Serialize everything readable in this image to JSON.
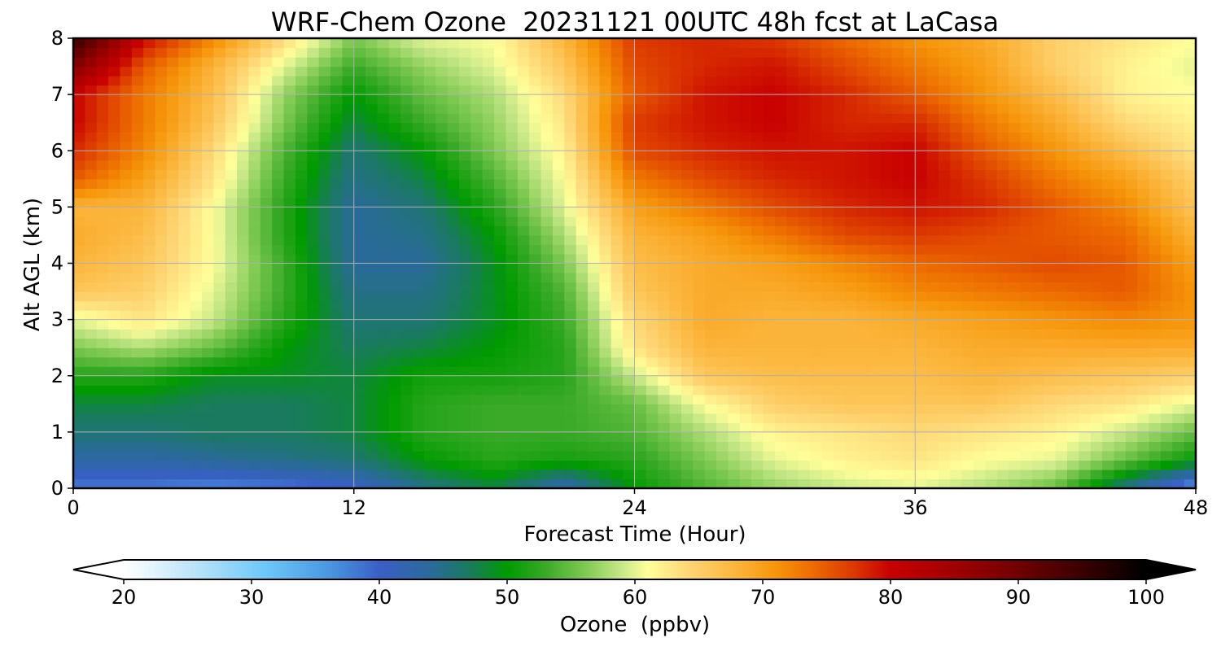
{
  "chart_data": {
    "type": "heatmap",
    "title": "WRF-Chem Ozone  20231121 00UTC 48h fcst at LaCasa",
    "xlabel": "Forecast Time (Hour)",
    "ylabel": "Alt AGL (km)",
    "xlim": [
      0,
      48
    ],
    "ylim": [
      0,
      8
    ],
    "xticks": [
      "0",
      "12",
      "24",
      "36",
      "48"
    ],
    "yticks": [
      "0",
      "1",
      "2",
      "3",
      "4",
      "5",
      "6",
      "7",
      "8"
    ],
    "grid": true,
    "x": [
      0,
      3,
      6,
      9,
      12,
      15,
      18,
      21,
      24,
      27,
      30,
      33,
      36,
      39,
      42,
      45,
      48
    ],
    "y": [
      0,
      0.5,
      1,
      1.5,
      2,
      2.5,
      3,
      3.5,
      4,
      4.5,
      5,
      5.5,
      6,
      6.5,
      7,
      7.5,
      8
    ],
    "z": [
      [
        38,
        38,
        37,
        38,
        40,
        45,
        48,
        42,
        50,
        54,
        57,
        59,
        60,
        58,
        55,
        45,
        35
      ],
      [
        43,
        43,
        44,
        45,
        46,
        50,
        52,
        51,
        52,
        56,
        60,
        62,
        63,
        61,
        60,
        55,
        50
      ],
      [
        46,
        46,
        47,
        47,
        48,
        52,
        53,
        53,
        54,
        58,
        62,
        63,
        64,
        63,
        62,
        59,
        55
      ],
      [
        48,
        48,
        47,
        47,
        48,
        52,
        53,
        53,
        55,
        61,
        65,
        66,
        66,
        66,
        64,
        63,
        60
      ],
      [
        52,
        52,
        49,
        49,
        48,
        51,
        51,
        52,
        59,
        66,
        67,
        67,
        67,
        68,
        67,
        66,
        65
      ],
      [
        56,
        58,
        55,
        50,
        47,
        48,
        50,
        52,
        63,
        68,
        68,
        68,
        68,
        69,
        69,
        69,
        69
      ],
      [
        60,
        63,
        59,
        52,
        46,
        46,
        49,
        53,
        64,
        69,
        68,
        68,
        69,
        70,
        71,
        72,
        71
      ],
      [
        66,
        65,
        60,
        53,
        45,
        45,
        49,
        54,
        66,
        69,
        69,
        70,
        72,
        73,
        74,
        75,
        71
      ],
      [
        68,
        66,
        61,
        53,
        44,
        44,
        49,
        56,
        67,
        69,
        70,
        72,
        74,
        75,
        76,
        75,
        70
      ],
      [
        69,
        67,
        61,
        52,
        44,
        45,
        50,
        58,
        68,
        70,
        73,
        76,
        77,
        76,
        75,
        74,
        68
      ],
      [
        68,
        68,
        61,
        52,
        44,
        46,
        52,
        60,
        70,
        73,
        76,
        78,
        79,
        78,
        75,
        72,
        66
      ],
      [
        75,
        70,
        63,
        53,
        45,
        48,
        54,
        61,
        73,
        76,
        78,
        79,
        80,
        77,
        73,
        70,
        65
      ],
      [
        78,
        72,
        64,
        54,
        46,
        50,
        56,
        62,
        76,
        78,
        79,
        79,
        80,
        75,
        71,
        67,
        63
      ],
      [
        80,
        73,
        66,
        56,
        48,
        53,
        57,
        63,
        77,
        79,
        80,
        78,
        78,
        73,
        69,
        64,
        62
      ],
      [
        80,
        73,
        67,
        57,
        50,
        55,
        58,
        64,
        75,
        79,
        80,
        78,
        75,
        71,
        67,
        62,
        61
      ],
      [
        88,
        75,
        68,
        60,
        53,
        57,
        60,
        66,
        76,
        78,
        79,
        76,
        73,
        70,
        65,
        62,
        60
      ],
      [
        96,
        80,
        72,
        64,
        56,
        60,
        61,
        68,
        77,
        78,
        77,
        74,
        71,
        69,
        65,
        63,
        61
      ]
    ],
    "colorbar": {
      "label": "Ozone  (ppbv)",
      "ticks": [
        "20",
        "30",
        "40",
        "50",
        "60",
        "70",
        "80",
        "90",
        "100"
      ],
      "min": 20,
      "max": 100,
      "extend": "both",
      "stops": [
        {
          "v": 20,
          "c": "#ffffff"
        },
        {
          "v": 26,
          "c": "#b4e1f8"
        },
        {
          "v": 31,
          "c": "#6ec8f8"
        },
        {
          "v": 36,
          "c": "#4a98e0"
        },
        {
          "v": 40,
          "c": "#3a5fc6"
        },
        {
          "v": 44,
          "c": "#2a6a9a"
        },
        {
          "v": 47,
          "c": "#1a7a60"
        },
        {
          "v": 50,
          "c": "#009a00"
        },
        {
          "v": 53,
          "c": "#3aaa28"
        },
        {
          "v": 56,
          "c": "#7cc850"
        },
        {
          "v": 59,
          "c": "#c8e888"
        },
        {
          "v": 61,
          "c": "#ffff9a"
        },
        {
          "v": 64,
          "c": "#fed878"
        },
        {
          "v": 68,
          "c": "#fbb43a"
        },
        {
          "v": 71,
          "c": "#f6960a"
        },
        {
          "v": 74,
          "c": "#ec6a00"
        },
        {
          "v": 77,
          "c": "#dc3a00"
        },
        {
          "v": 80,
          "c": "#c80000"
        },
        {
          "v": 85,
          "c": "#a00000"
        },
        {
          "v": 90,
          "c": "#700000"
        },
        {
          "v": 95,
          "c": "#3a0000"
        },
        {
          "v": 100,
          "c": "#000000"
        }
      ]
    }
  }
}
